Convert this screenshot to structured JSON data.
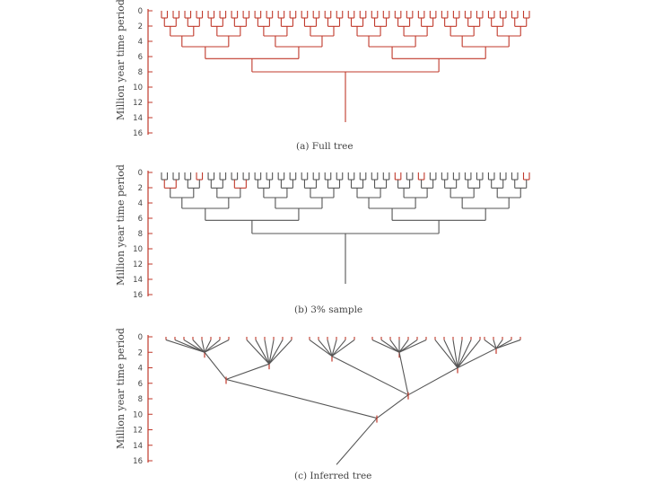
{
  "colors": {
    "red": "#c0392b",
    "grey": "#555555",
    "darkred": "#b03030"
  },
  "panels": [
    {
      "id": "full",
      "caption": "(a)  Full tree",
      "ylabel": "Million year time period",
      "color": "red"
    },
    {
      "id": "sample",
      "caption": "(b)  3% sample",
      "ylabel": "Million year time period",
      "color": "grey"
    },
    {
      "id": "inferred",
      "caption": "(c)  Inferred tree",
      "ylabel": "Million year time period",
      "color": "grey"
    }
  ],
  "yticks": [
    "0",
    "2",
    "4",
    "6",
    "8",
    "10",
    "12",
    "14",
    "16"
  ]
}
